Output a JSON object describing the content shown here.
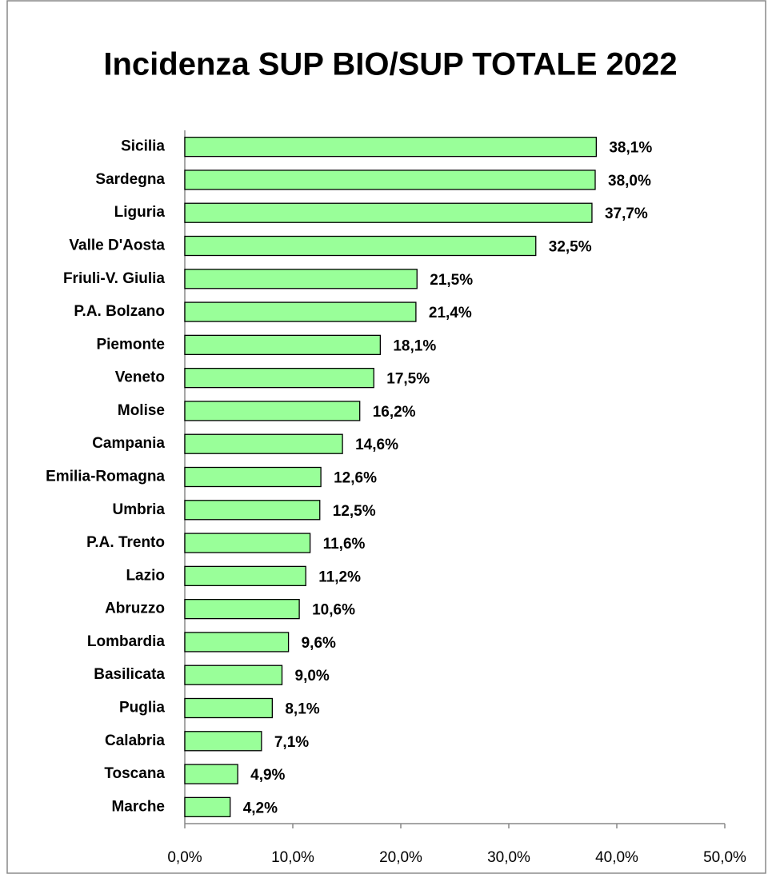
{
  "chart_data": {
    "type": "bar",
    "orientation": "horizontal",
    "title": "Incidenza SUP BIO/SUP TOTALE 2022",
    "categories": [
      "Sicilia",
      "Sardegna",
      "Liguria",
      "Valle D'Aosta",
      "Friuli-V. Giulia",
      "P.A. Bolzano",
      "Piemonte",
      "Veneto",
      "Molise",
      "Campania",
      "Emilia-Romagna",
      "Umbria",
      "P.A. Trento",
      "Lazio",
      "Abruzzo",
      "Lombardia",
      "Basilicata",
      "Puglia",
      "Calabria",
      "Toscana",
      "Marche"
    ],
    "values": [
      38.1,
      38.0,
      37.7,
      32.5,
      21.5,
      21.4,
      18.1,
      17.5,
      16.2,
      14.6,
      12.6,
      12.5,
      11.6,
      11.2,
      10.6,
      9.6,
      9.0,
      8.1,
      7.1,
      4.9,
      4.2
    ],
    "value_labels": [
      "38,1%",
      "38,0%",
      "37,7%",
      "32,5%",
      "21,5%",
      "21,4%",
      "18,1%",
      "17,5%",
      "16,2%",
      "14,6%",
      "12,6%",
      "12,5%",
      "11,6%",
      "11,2%",
      "10,6%",
      "9,6%",
      "9,0%",
      "8,1%",
      "7,1%",
      "4,9%",
      "4,2%"
    ],
    "color": "#99ff99",
    "xlim": [
      0,
      50
    ],
    "xticks": [
      {
        "value": 0,
        "label": "0,0%"
      },
      {
        "value": 10,
        "label": "10,0%"
      },
      {
        "value": 20,
        "label": "20,0%"
      },
      {
        "value": 30,
        "label": "30,0%"
      },
      {
        "value": 40,
        "label": "40,0%"
      },
      {
        "value": 50,
        "label": "50,0%"
      }
    ]
  }
}
